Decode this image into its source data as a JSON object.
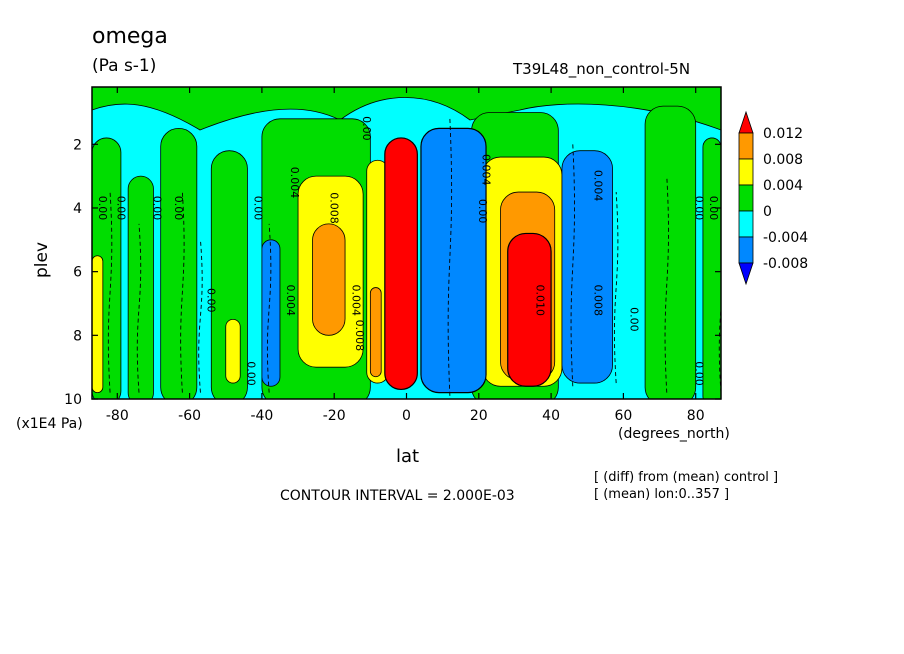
{
  "chart_data": {
    "type": "heatmap",
    "title": "omega",
    "units": "(Pa s-1)",
    "experiment": "T39L48_non_control-5N",
    "xlabel": "lat",
    "x_units": "(degrees_north)",
    "ylabel": "plev",
    "y_units": "(x1E4 Pa)",
    "x_ticks": [
      -80,
      -60,
      -40,
      -20,
      0,
      20,
      40,
      60,
      80
    ],
    "x_tick_labels": [
      "-80",
      "-60",
      "-40",
      "-20",
      "0",
      "20",
      "40",
      "60",
      "80"
    ],
    "y_ticks": [
      2,
      4,
      6,
      8,
      10
    ],
    "y_tick_labels": [
      "2",
      "4",
      "6",
      "8",
      "10"
    ],
    "xlim": [
      -87,
      87
    ],
    "ylim": [
      10,
      0.2
    ],
    "contour_interval": "CONTOUR INTERVAL = 2.000E-03",
    "notes": [
      "[ (diff) from (mean) control ]",
      "[ (mean) lon:0..357 ]"
    ],
    "legend": {
      "levels": [
        "0.012",
        "0.008",
        "0.004",
        "0",
        "-0.004",
        "-0.008"
      ],
      "colors": [
        "#ff0000",
        "#ff9900",
        "#ffff00",
        "#00dd00",
        "#00ffff",
        "#0088ff",
        "#0000ff"
      ]
    },
    "contour_labels": [
      {
        "text": "0.00",
        "lat": -85,
        "plev": 4.0
      },
      {
        "text": "0.00",
        "lat": -80,
        "plev": 4.0
      },
      {
        "text": "0.00",
        "lat": -70,
        "plev": 4.0
      },
      {
        "text": "0.00",
        "lat": -64,
        "plev": 4.0
      },
      {
        "text": "0.00",
        "lat": -55,
        "plev": 6.9
      },
      {
        "text": "0.00",
        "lat": -42,
        "plev": 4.0
      },
      {
        "text": "0.00",
        "lat": -44,
        "plev": 9.2
      },
      {
        "text": "0.004",
        "lat": -32,
        "plev": 3.2
      },
      {
        "text": "0.004",
        "lat": -33,
        "plev": 6.9
      },
      {
        "text": "0.008",
        "lat": -21,
        "plev": 4.0
      },
      {
        "text": "0.004",
        "lat": -15,
        "plev": 6.9
      },
      {
        "text": "0.008",
        "lat": -14,
        "plev": 8.0
      },
      {
        "text": "0.00",
        "lat": -12,
        "plev": 1.5
      },
      {
        "text": "0.004",
        "lat": 21,
        "plev": 2.8
      },
      {
        "text": "0.00",
        "lat": 20,
        "plev": 4.1
      },
      {
        "text": "0.010",
        "lat": 36,
        "plev": 6.9
      },
      {
        "text": "0.004",
        "lat": 52,
        "plev": 3.3
      },
      {
        "text": "0.008",
        "lat": 52,
        "plev": 6.9
      },
      {
        "text": "0.00",
        "lat": 62,
        "plev": 7.5
      },
      {
        "text": "0.00",
        "lat": 80,
        "plev": 4.0
      },
      {
        "text": "0.00",
        "lat": 84,
        "plev": 4.0
      },
      {
        "text": "0.00",
        "lat": 80,
        "plev": 9.2
      }
    ]
  }
}
